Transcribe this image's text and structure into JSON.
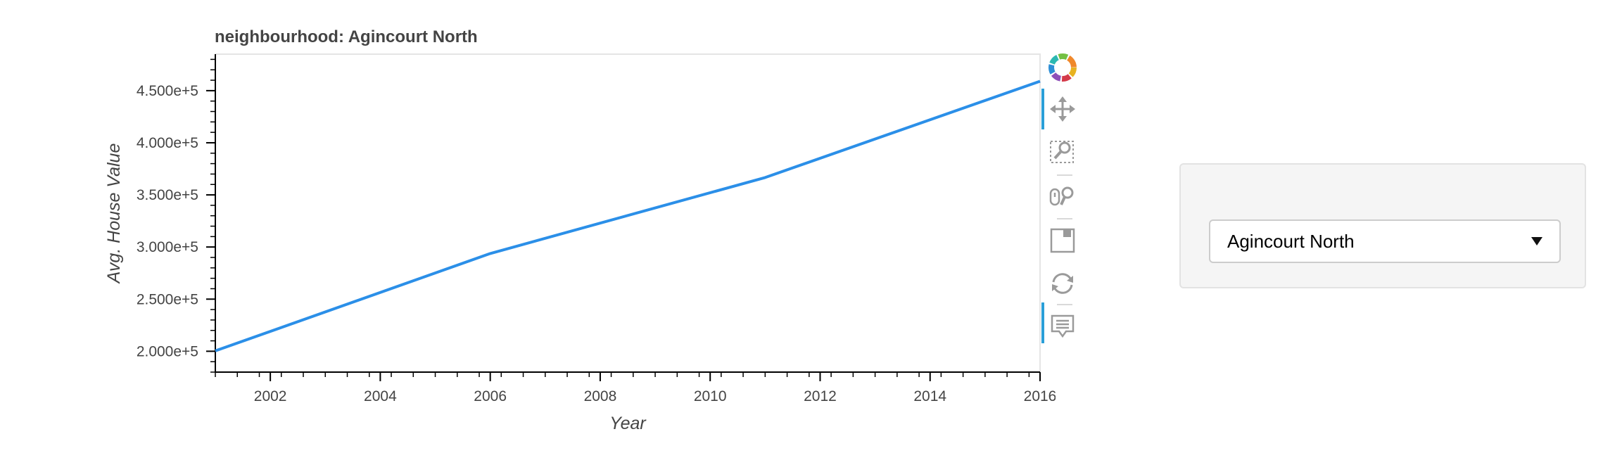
{
  "chart_data": {
    "type": "line",
    "title": "neighbourhood: Agincourt North",
    "xlabel": "Year",
    "ylabel": "Avg. House Value",
    "x": [
      2001,
      2006,
      2011,
      2016
    ],
    "series": [
      {
        "values": [
          200388,
          293741,
          366667,
          459050
        ]
      }
    ],
    "xlim": [
      2001,
      2016
    ],
    "ylim": [
      180000,
      485000
    ],
    "xticks": [
      2002,
      2004,
      2006,
      2008,
      2010,
      2012,
      2014,
      2016
    ],
    "xtick_labels": [
      "2002",
      "2004",
      "2006",
      "2008",
      "2010",
      "2012",
      "2014",
      "2016"
    ],
    "yticks": [
      200000,
      250000,
      300000,
      350000,
      400000,
      450000
    ],
    "ytick_labels": [
      "2.000e+5",
      "2.500e+5",
      "3.000e+5",
      "3.500e+5",
      "4.000e+5",
      "4.500e+5"
    ],
    "grid": false,
    "line_color": "#2b8fe8"
  },
  "toolbar": {
    "tools": [
      "bokeh-logo-icon",
      "pan-icon",
      "box-zoom-icon",
      "wheel-zoom-icon",
      "save-icon",
      "reset-icon",
      "hover-icon"
    ]
  },
  "widget": {
    "select_value": "Agincourt North"
  }
}
